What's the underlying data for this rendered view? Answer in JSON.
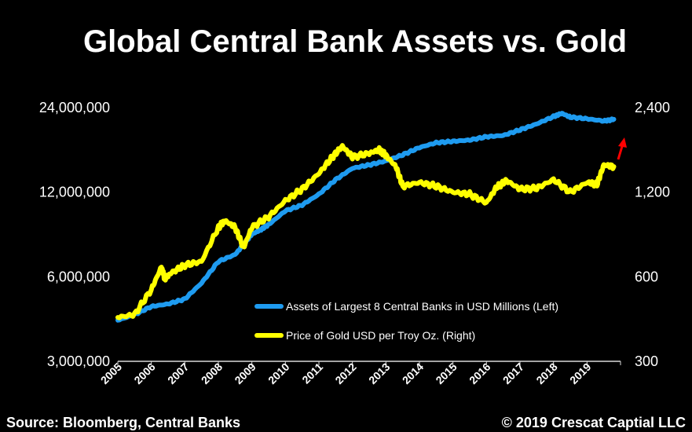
{
  "chart_data": {
    "type": "line",
    "title": "Global Central Bank Assets vs. Gold",
    "x_ticks": [
      "2005",
      "2006",
      "2007",
      "2008",
      "2009",
      "2010",
      "2011",
      "2012",
      "2013",
      "2014",
      "2015",
      "2016",
      "2017",
      "2018",
      "2019"
    ],
    "y_left": {
      "scale": "log",
      "ylim": [
        3000000,
        24000000
      ],
      "ticks": [
        3000000,
        6000000,
        12000000,
        24000000
      ],
      "tick_labels": [
        "3,000,000",
        "6,000,000",
        "12,000,000",
        "24,000,000"
      ]
    },
    "y_right": {
      "scale": "log",
      "ylim": [
        300,
        2400
      ],
      "ticks": [
        300,
        600,
        1200,
        2400
      ],
      "tick_labels": [
        "300",
        "600",
        "1,200",
        "2,400"
      ]
    },
    "series": [
      {
        "name": "Assets of Largest 8 Central Banks in USD Millions (Left)",
        "axis": "left",
        "color": "#1e9bf0",
        "x": [
          2005.0,
          2005.5,
          2006.0,
          2006.5,
          2007.0,
          2007.5,
          2008.0,
          2008.5,
          2008.75,
          2009.0,
          2009.25,
          2009.5,
          2010.0,
          2010.5,
          2011.0,
          2011.5,
          2012.0,
          2012.5,
          2013.0,
          2013.5,
          2014.0,
          2014.5,
          2015.0,
          2015.5,
          2016.0,
          2016.5,
          2017.0,
          2017.5,
          2018.0,
          2018.25,
          2018.5,
          2019.0,
          2019.5,
          2019.8
        ],
        "values": [
          4200000,
          4400000,
          4700000,
          4800000,
          5000000,
          5700000,
          6800000,
          7200000,
          7800000,
          8500000,
          8800000,
          9200000,
          10300000,
          10800000,
          11800000,
          13300000,
          14600000,
          15000000,
          15500000,
          16300000,
          17300000,
          18000000,
          18200000,
          18400000,
          18900000,
          19100000,
          20000000,
          21000000,
          22300000,
          22900000,
          22200000,
          21900000,
          21500000,
          21800000
        ]
      },
      {
        "name": "Price of Gold USD per Troy Oz. (Right)",
        "axis": "right",
        "color": "#ffff00",
        "x": [
          2005.0,
          2005.5,
          2006.0,
          2006.3,
          2006.4,
          2006.6,
          2007.0,
          2007.5,
          2008.0,
          2008.2,
          2008.5,
          2008.75,
          2009.0,
          2009.5,
          2010.0,
          2010.5,
          2011.0,
          2011.4,
          2011.7,
          2012.0,
          2012.5,
          2012.8,
          2013.0,
          2013.3,
          2013.5,
          2014.0,
          2014.5,
          2015.0,
          2015.5,
          2016.0,
          2016.3,
          2016.6,
          2017.0,
          2017.5,
          2018.0,
          2018.5,
          2019.0,
          2019.3,
          2019.5,
          2019.8
        ],
        "values": [
          430,
          440,
          540,
          650,
          590,
          620,
          660,
          680,
          900,
          950,
          900,
          760,
          900,
          980,
          1120,
          1230,
          1400,
          1600,
          1750,
          1600,
          1650,
          1700,
          1620,
          1480,
          1260,
          1300,
          1260,
          1200,
          1180,
          1100,
          1250,
          1320,
          1230,
          1240,
          1330,
          1200,
          1300,
          1280,
          1500,
          1480
        ]
      }
    ],
    "annotations": [
      {
        "type": "arrow",
        "color": "#ff0000",
        "direction": "up"
      }
    ]
  },
  "footer": {
    "source": "Source: Bloomberg, Central Banks",
    "copyright": "© 2019 Crescat Captial LLC"
  }
}
